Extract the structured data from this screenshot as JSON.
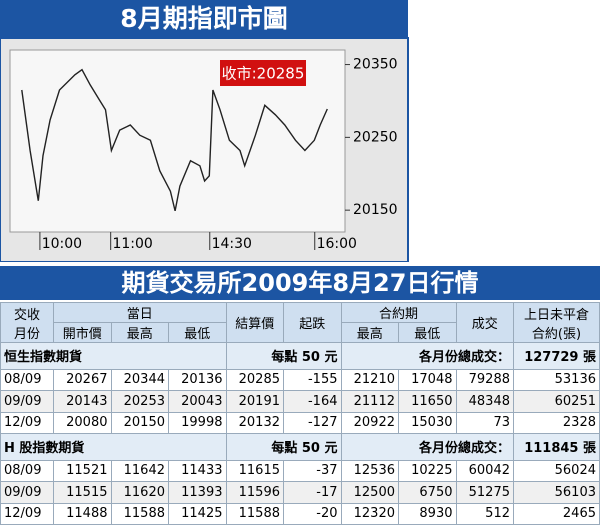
{
  "chart_data": {
    "type": "line",
    "title": "8月期指即市圖",
    "annotation": "收市:20285",
    "x": [
      10,
      17,
      24,
      28,
      34,
      42,
      55,
      61,
      68,
      76,
      81,
      86,
      93,
      102,
      110,
      119,
      127,
      136,
      140,
      144,
      153,
      161,
      165,
      169,
      172,
      178,
      186,
      195,
      199,
      208,
      216,
      225,
      233,
      242,
      250,
      258,
      263,
      269
    ],
    "values": [
      20315,
      20232,
      20163,
      20225,
      20274,
      20315,
      20336,
      20343,
      20322,
      20301,
      20288,
      20232,
      20260,
      20267,
      20253,
      20246,
      20204,
      20176,
      20149,
      20183,
      20218,
      20211,
      20190,
      20197,
      20315,
      20288,
      20246,
      20232,
      20211,
      20253,
      20294,
      20281,
      20267,
      20246,
      20232,
      20246,
      20267,
      20289
    ],
    "color": "#222222",
    "xlim": [
      0,
      284
    ],
    "xticks": [
      {
        "value": 44,
        "label": "10:00"
      },
      {
        "value": 104,
        "label": "11:00"
      },
      {
        "value": 188,
        "label": "14:30"
      },
      {
        "value": 277,
        "label": "16:00"
      }
    ],
    "ylim": [
      20120,
      20370
    ],
    "yticks": [
      20150,
      20250,
      20350
    ]
  },
  "table": {
    "title": "期貨交易所2009年8月27日行情",
    "columns": [
      "交收月份",
      "當日",
      "結算價",
      "起跌",
      "合約期",
      "成交",
      "上日未平倉合約(張)"
    ],
    "subcolumns": [
      "開市價",
      "最高",
      "最低",
      "最高",
      "最低"
    ],
    "sections": [
      {
        "name": "恒生指數期貨",
        "unit": "每點 50 元",
        "total_label": "各月份總成交：",
        "total": "127729 張",
        "rows": [
          [
            "08/09",
            20267,
            20344,
            20136,
            20285,
            -155,
            21210,
            17048,
            79288,
            53136
          ],
          [
            "09/09",
            20143,
            20253,
            20043,
            20191,
            -164,
            21112,
            11650,
            48348,
            60251
          ],
          [
            "12/09",
            20080,
            20150,
            19998,
            20132,
            -127,
            20922,
            15030,
            73,
            2328
          ]
        ]
      },
      {
        "name": "H 股指數期貨",
        "unit": "每點 50 元",
        "total_label": "各月份總成交：",
        "total": "111845 張",
        "rows": [
          [
            "08/09",
            11521,
            11642,
            11433,
            11615,
            -37,
            12536,
            10225,
            60042,
            56024
          ],
          [
            "09/09",
            11515,
            11620,
            11393,
            11596,
            -17,
            12500,
            6750,
            51275,
            56103
          ],
          [
            "12/09",
            11488,
            11588,
            11425,
            11588,
            -20,
            12320,
            8930,
            512,
            2465
          ]
        ]
      }
    ]
  }
}
